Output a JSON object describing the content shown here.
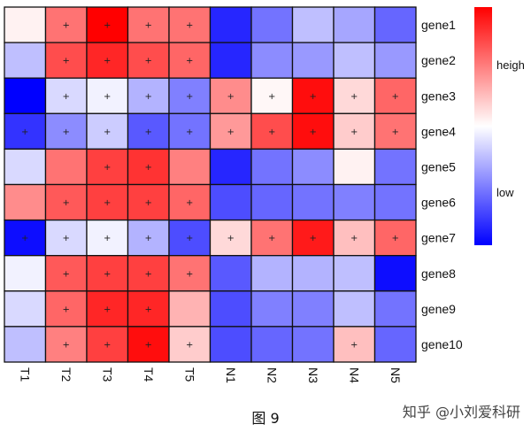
{
  "chart_data": {
    "type": "heatmap",
    "title": "",
    "columns": [
      "T1",
      "T2",
      "T3",
      "T4",
      "T5",
      "N1",
      "N2",
      "N3",
      "N4",
      "N5"
    ],
    "rows": [
      "gene1",
      "gene2",
      "gene3",
      "gene4",
      "gene5",
      "gene6",
      "gene7",
      "gene8",
      "gene9",
      "gene10"
    ],
    "values": [
      [
        0.05,
        0.55,
        1.0,
        0.55,
        0.55,
        -0.85,
        -0.55,
        -0.25,
        -0.35,
        -0.6
      ],
      [
        -0.25,
        0.7,
        0.85,
        0.7,
        0.6,
        -0.85,
        -0.45,
        -0.4,
        -0.25,
        -0.4
      ],
      [
        -1.0,
        -0.15,
        -0.05,
        -0.3,
        -0.5,
        0.45,
        0.03,
        0.95,
        0.15,
        0.6
      ],
      [
        -0.8,
        -0.45,
        -0.2,
        -0.65,
        -0.55,
        0.4,
        0.7,
        0.95,
        0.2,
        0.55
      ],
      [
        -0.15,
        0.55,
        0.75,
        0.8,
        0.5,
        -0.85,
        -0.55,
        -0.45,
        0.05,
        -0.55
      ],
      [
        0.45,
        0.65,
        0.75,
        0.75,
        0.6,
        -0.7,
        -0.6,
        -0.55,
        -0.5,
        -0.55
      ],
      [
        -0.95,
        -0.15,
        -0.05,
        -0.3,
        -0.7,
        0.15,
        0.55,
        0.9,
        0.25,
        0.6
      ],
      [
        -0.05,
        0.65,
        0.75,
        0.75,
        0.55,
        -0.65,
        -0.3,
        -0.3,
        -0.25,
        -0.95
      ],
      [
        -0.15,
        0.6,
        0.85,
        0.85,
        0.3,
        -0.7,
        -0.5,
        -0.5,
        -0.25,
        -0.55
      ],
      [
        -0.25,
        0.5,
        0.75,
        0.95,
        0.2,
        -0.7,
        -0.6,
        -0.55,
        0.25,
        -0.6
      ]
    ],
    "markers": [
      [
        0,
        1,
        1,
        1,
        1,
        0,
        0,
        0,
        0,
        0
      ],
      [
        0,
        1,
        1,
        1,
        1,
        0,
        0,
        0,
        0,
        0
      ],
      [
        0,
        1,
        1,
        1,
        1,
        1,
        1,
        1,
        1,
        1
      ],
      [
        1,
        1,
        1,
        1,
        1,
        1,
        1,
        1,
        1,
        1
      ],
      [
        0,
        0,
        1,
        1,
        0,
        0,
        0,
        0,
        0,
        0
      ],
      [
        0,
        1,
        1,
        1,
        1,
        0,
        0,
        0,
        0,
        0
      ],
      [
        1,
        1,
        1,
        1,
        1,
        1,
        1,
        1,
        1,
        1
      ],
      [
        0,
        1,
        1,
        1,
        1,
        0,
        0,
        0,
        0,
        0
      ],
      [
        0,
        1,
        1,
        1,
        0,
        0,
        0,
        0,
        0,
        0
      ],
      [
        0,
        1,
        1,
        1,
        1,
        0,
        0,
        0,
        1,
        0
      ]
    ],
    "marker_symbol": "+",
    "value_range": [
      -1,
      1
    ],
    "colors": {
      "low": "#0000ff",
      "mid": "#ffffff",
      "high": "#ff0000"
    },
    "legend": {
      "high_label": "heigh",
      "low_label": "low",
      "placement": "right"
    }
  },
  "caption": "图 9",
  "watermark": "知乎 @小刘爱科研"
}
